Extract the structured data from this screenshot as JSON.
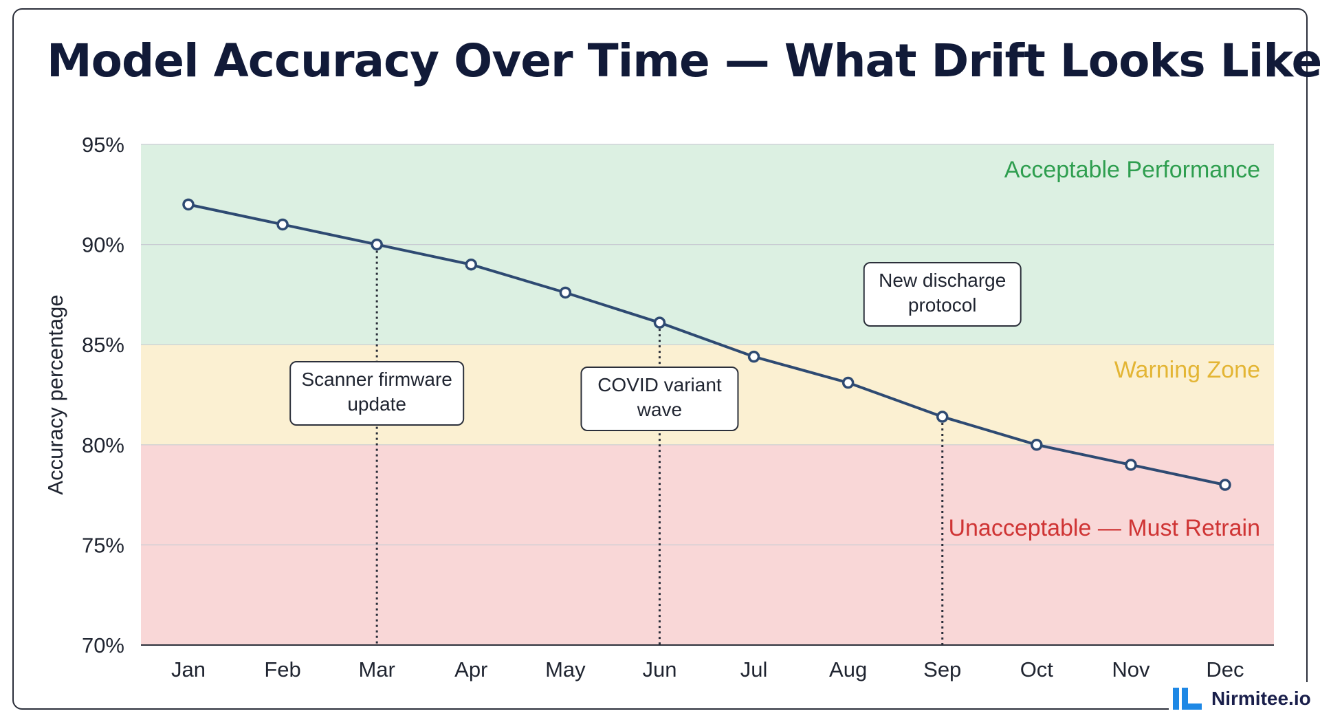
{
  "title": "Model Accuracy Over Time — What Drift Looks Like",
  "brand": {
    "name": "Nirmitee.io",
    "logo_color": "#1e88e5"
  },
  "colors": {
    "line": "#2e4a72",
    "acceptable_band": "#dcf0e2",
    "warning_band": "#fbf0d2",
    "unacceptable_band": "#f9d7d7",
    "acceptable_text": "#2e9e4f",
    "warning_text": "#e3b534",
    "unacceptable_text": "#cf3434"
  },
  "chart_data": {
    "type": "line",
    "title": "Model Accuracy Over Time — What Drift Looks Like",
    "xlabel": "",
    "ylabel": "Accuracy percentage",
    "categories": [
      "Jan",
      "Feb",
      "Mar",
      "Apr",
      "May",
      "Jun",
      "Jul",
      "Aug",
      "Sep",
      "Oct",
      "Nov",
      "Dec"
    ],
    "series": [
      {
        "values": [
          92,
          91,
          90,
          89,
          87.6,
          86.1,
          84.4,
          83.1,
          81.4,
          80,
          79,
          78
        ]
      }
    ],
    "ylim": [
      70,
      95
    ],
    "yticks": [
      95,
      90,
      85,
      80,
      75,
      70
    ],
    "ytick_labels": [
      "95%",
      "90%",
      "85%",
      "80%",
      "75%",
      "70%"
    ],
    "grid": true,
    "zones": [
      {
        "label": "Acceptable Performance",
        "from": 85,
        "to": 95
      },
      {
        "label": "Warning Zone",
        "from": 80,
        "to": 85
      },
      {
        "label": "Unacceptable — Must Retrain",
        "from": 70,
        "to": 80
      }
    ],
    "annotations": [
      {
        "category": "Mar",
        "lines": [
          "Scanner firmware",
          "update"
        ]
      },
      {
        "category": "Jun",
        "lines": [
          "COVID variant",
          "wave"
        ]
      },
      {
        "category": "Sep",
        "lines": [
          "New discharge",
          "protocol"
        ]
      }
    ]
  }
}
